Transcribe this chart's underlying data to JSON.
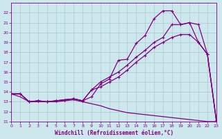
{
  "background_color": "#cce8ed",
  "line_color": "#800080",
  "grid_color": "#b0cdd4",
  "xlabel": "Windchill (Refroidissement éolien,°C)",
  "xlim": [
    0,
    23
  ],
  "ylim": [
    11,
    23
  ],
  "yticks": [
    11,
    12,
    13,
    14,
    15,
    16,
    17,
    18,
    19,
    20,
    21,
    22
  ],
  "xticks": [
    0,
    1,
    2,
    3,
    4,
    5,
    6,
    7,
    8,
    9,
    10,
    11,
    12,
    13,
    14,
    15,
    16,
    17,
    18,
    19,
    20,
    21,
    22,
    23
  ],
  "line1_x": [
    0,
    1,
    2,
    3,
    4,
    5,
    6,
    7,
    8,
    9,
    10,
    11,
    12,
    13,
    14,
    15,
    16,
    17,
    18,
    19,
    20,
    21,
    22,
    23
  ],
  "line1_y": [
    13.8,
    13.8,
    13.0,
    13.1,
    13.0,
    13.1,
    13.2,
    13.3,
    13.1,
    13.5,
    14.8,
    15.3,
    17.2,
    17.3,
    18.9,
    19.7,
    21.4,
    22.2,
    22.2,
    20.8,
    21.0,
    20.8,
    17.8,
    11.1
  ],
  "line2_x": [
    0,
    1,
    2,
    3,
    4,
    5,
    6,
    7,
    8,
    9,
    10,
    11,
    12,
    13,
    14,
    15,
    16,
    17,
    18,
    19,
    20,
    21,
    22,
    23
  ],
  "line2_y": [
    13.8,
    13.8,
    13.0,
    13.1,
    13.0,
    13.1,
    13.2,
    13.3,
    13.1,
    14.2,
    15.0,
    15.5,
    16.0,
    16.7,
    17.5,
    18.2,
    19.0,
    19.5,
    20.8,
    20.8,
    21.0,
    19.0,
    17.8,
    11.1
  ],
  "line3_x": [
    0,
    1,
    2,
    3,
    4,
    5,
    6,
    7,
    8,
    9,
    10,
    11,
    12,
    13,
    14,
    15,
    16,
    17,
    18,
    19,
    20,
    21,
    22,
    23
  ],
  "line3_y": [
    13.8,
    13.8,
    13.0,
    13.1,
    13.0,
    13.1,
    13.2,
    13.3,
    13.1,
    14.2,
    14.5,
    15.0,
    15.5,
    16.2,
    17.0,
    17.7,
    18.5,
    19.0,
    19.5,
    19.8,
    19.8,
    19.0,
    17.8,
    11.1
  ],
  "line4_x": [
    0,
    1,
    2,
    3,
    4,
    5,
    6,
    7,
    8,
    9,
    10,
    11,
    12,
    13,
    14,
    15,
    16,
    17,
    18,
    19,
    20,
    21,
    22,
    23
  ],
  "line4_y": [
    13.8,
    13.5,
    13.0,
    13.0,
    13.0,
    13.0,
    13.1,
    13.2,
    13.0,
    12.8,
    12.6,
    12.3,
    12.1,
    11.9,
    11.8,
    11.7,
    11.6,
    11.5,
    11.4,
    11.3,
    11.2,
    11.1,
    11.0,
    11.0
  ]
}
